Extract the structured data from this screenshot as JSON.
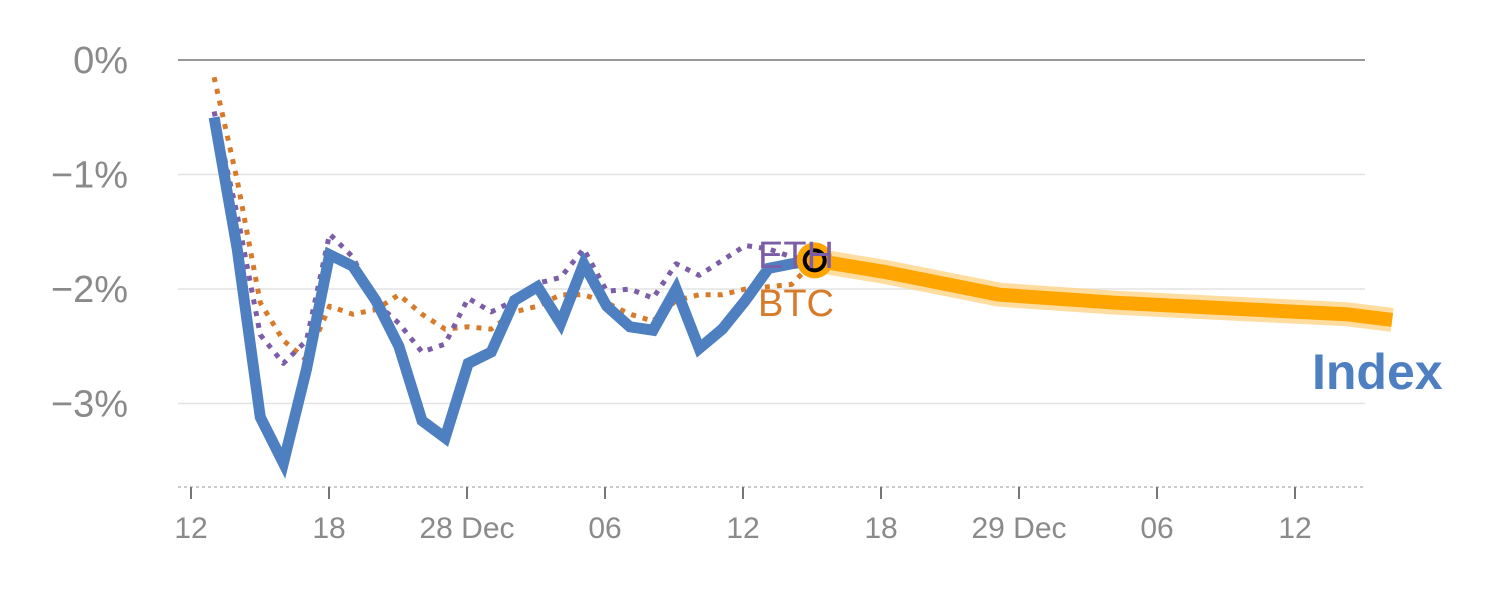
{
  "chart_data": {
    "type": "line",
    "y_axis": {
      "ticks": [
        0,
        -1,
        -2,
        -3
      ],
      "tick_labels": [
        "0%",
        "−1%",
        "−2%",
        "−3%"
      ],
      "range": [
        -3.7,
        0
      ],
      "unit": "%"
    },
    "x_axis": {
      "tick_labels": [
        "12",
        "18",
        "28 Dec",
        "06",
        "12",
        "18",
        "29 Dec",
        "06",
        "12"
      ],
      "range": [
        0,
        52
      ]
    },
    "grid": true,
    "series": [
      {
        "name": "Index",
        "style": "solid",
        "color": "#4e7fc1",
        "x": [
          1,
          2,
          3,
          4,
          5,
          6,
          7,
          8,
          9,
          10,
          11,
          12,
          13,
          14,
          15,
          16,
          17,
          18,
          19,
          20,
          21,
          22,
          23,
          24,
          25,
          26,
          27
        ],
        "values": [
          -0.5,
          -1.65,
          -3.12,
          -3.52,
          -2.7,
          -1.7,
          -1.8,
          -2.1,
          -2.5,
          -3.15,
          -3.3,
          -2.65,
          -2.55,
          -2.1,
          -1.98,
          -2.3,
          -1.78,
          -2.15,
          -2.33,
          -2.36,
          -2.0,
          -2.52,
          -2.35,
          -2.1,
          -1.82,
          -1.78,
          -1.75
        ]
      },
      {
        "name": "ETH",
        "style": "dotted",
        "color": "#7b5ea7",
        "x": [
          1,
          2,
          3,
          4,
          5,
          6,
          7,
          8,
          9,
          10,
          11,
          12,
          13,
          14,
          15,
          16,
          17,
          18,
          19,
          20,
          21,
          22,
          23,
          24,
          25,
          26,
          27
        ],
        "values": [
          -0.45,
          -1.35,
          -2.4,
          -2.65,
          -2.45,
          -1.52,
          -1.72,
          -2.12,
          -2.3,
          -2.55,
          -2.48,
          -2.08,
          -2.2,
          -2.1,
          -1.95,
          -1.9,
          -1.65,
          -2.02,
          -2.0,
          -2.08,
          -1.78,
          -1.88,
          -1.75,
          -1.62,
          -1.65,
          -1.72,
          -1.75
        ]
      },
      {
        "name": "BTC",
        "style": "dotted",
        "color": "#d77b2b",
        "x": [
          1,
          2,
          3,
          4,
          5,
          6,
          7,
          8,
          9,
          10,
          11,
          12,
          13,
          14,
          15,
          16,
          17,
          18,
          19,
          20,
          21,
          22,
          23,
          24,
          25,
          26,
          27
        ],
        "values": [
          -0.15,
          -1.05,
          -2.12,
          -2.45,
          -2.62,
          -2.15,
          -2.22,
          -2.18,
          -2.05,
          -2.22,
          -2.35,
          -2.33,
          -2.35,
          -2.2,
          -2.15,
          -2.05,
          -2.05,
          -2.12,
          -2.22,
          -2.28,
          -2.1,
          -2.05,
          -2.05,
          -2.0,
          -1.98,
          -1.96,
          -1.75
        ]
      },
      {
        "name": "forecast",
        "style": "band",
        "color": "#ffa500",
        "x": [
          27,
          30,
          35,
          40,
          45,
          50,
          52
        ],
        "values": [
          -1.75,
          -1.85,
          -2.05,
          -2.12,
          -2.17,
          -2.22,
          -2.27
        ]
      }
    ],
    "current_marker": {
      "x": 27,
      "value": -1.75
    },
    "annotations": [
      "ETH",
      "BTC",
      "Index"
    ]
  }
}
